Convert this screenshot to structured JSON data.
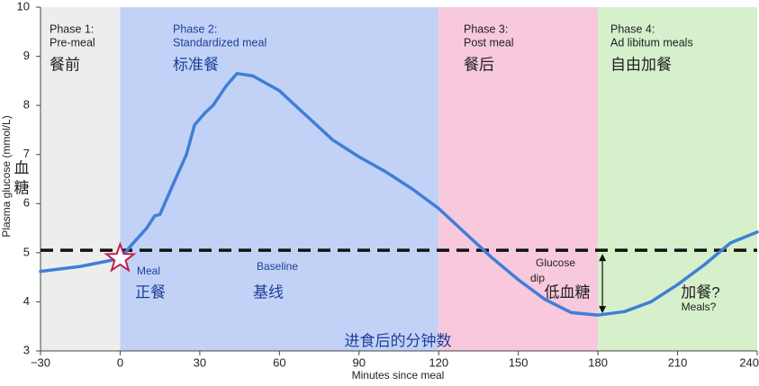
{
  "chart_data": {
    "type": "line",
    "y_label": "Plasma glucose (mmol/L)",
    "y_label_zh": [
      "血",
      "糖"
    ],
    "x_label": "Minutes since meal",
    "x_label_zh": "进食后的分钟数",
    "xlim": [
      -30,
      240
    ],
    "ylim": [
      3,
      10
    ],
    "xticks": [
      {
        "value": -30,
        "label": "−30"
      },
      0,
      30,
      60,
      90,
      120,
      150,
      180,
      210,
      240
    ],
    "yticks": [
      3,
      4,
      5,
      6,
      7,
      8,
      9,
      10
    ],
    "phases": [
      {
        "start": -30,
        "end": 0,
        "color": "#eceeee",
        "text_color": "#222222",
        "title": "Phase 1:",
        "name": "Pre-meal",
        "name_zh": "餐前"
      },
      {
        "start": 0,
        "end": 120,
        "color": "#c2d2f6",
        "text_color": "#1f3f9a",
        "title": "Phase 2:",
        "name": "Standardized meal",
        "name_zh": "标准餐"
      },
      {
        "start": 120,
        "end": 180,
        "color": "#f8c8dd",
        "text_color": "#222222",
        "title": "Phase 3:",
        "name": "Post meal",
        "name_zh": "餐后"
      },
      {
        "start": 180,
        "end": 240,
        "color": "#d5f0cb",
        "text_color": "#222222",
        "title": "Phase 4:",
        "name": "Ad libitum meals",
        "name_zh": "自由加餐"
      }
    ],
    "baseline": 5.05,
    "x": [
      -30,
      -15,
      0,
      5,
      10,
      13,
      15,
      20,
      25,
      28,
      32,
      35,
      40,
      44,
      50,
      60,
      70,
      80,
      90,
      100,
      110,
      120,
      130,
      140,
      150,
      160,
      170,
      180,
      190,
      200,
      210,
      220,
      230,
      240
    ],
    "series": [
      {
        "name": "Plasma glucose",
        "color": "#3f7fd6",
        "values": [
          4.62,
          4.72,
          4.88,
          5.2,
          5.5,
          5.75,
          5.78,
          6.4,
          7.0,
          7.6,
          7.85,
          8.0,
          8.4,
          8.65,
          8.6,
          8.3,
          7.8,
          7.3,
          6.95,
          6.65,
          6.3,
          5.9,
          5.4,
          4.9,
          4.45,
          4.05,
          3.78,
          3.73,
          3.8,
          4.0,
          4.35,
          4.75,
          5.2,
          5.42
        ]
      }
    ],
    "annotations": [
      "Meal",
      "正餐",
      "Baseline",
      "基线",
      "Glucose",
      "dip",
      "低血糖",
      "加餐?",
      "Meals?"
    ]
  }
}
